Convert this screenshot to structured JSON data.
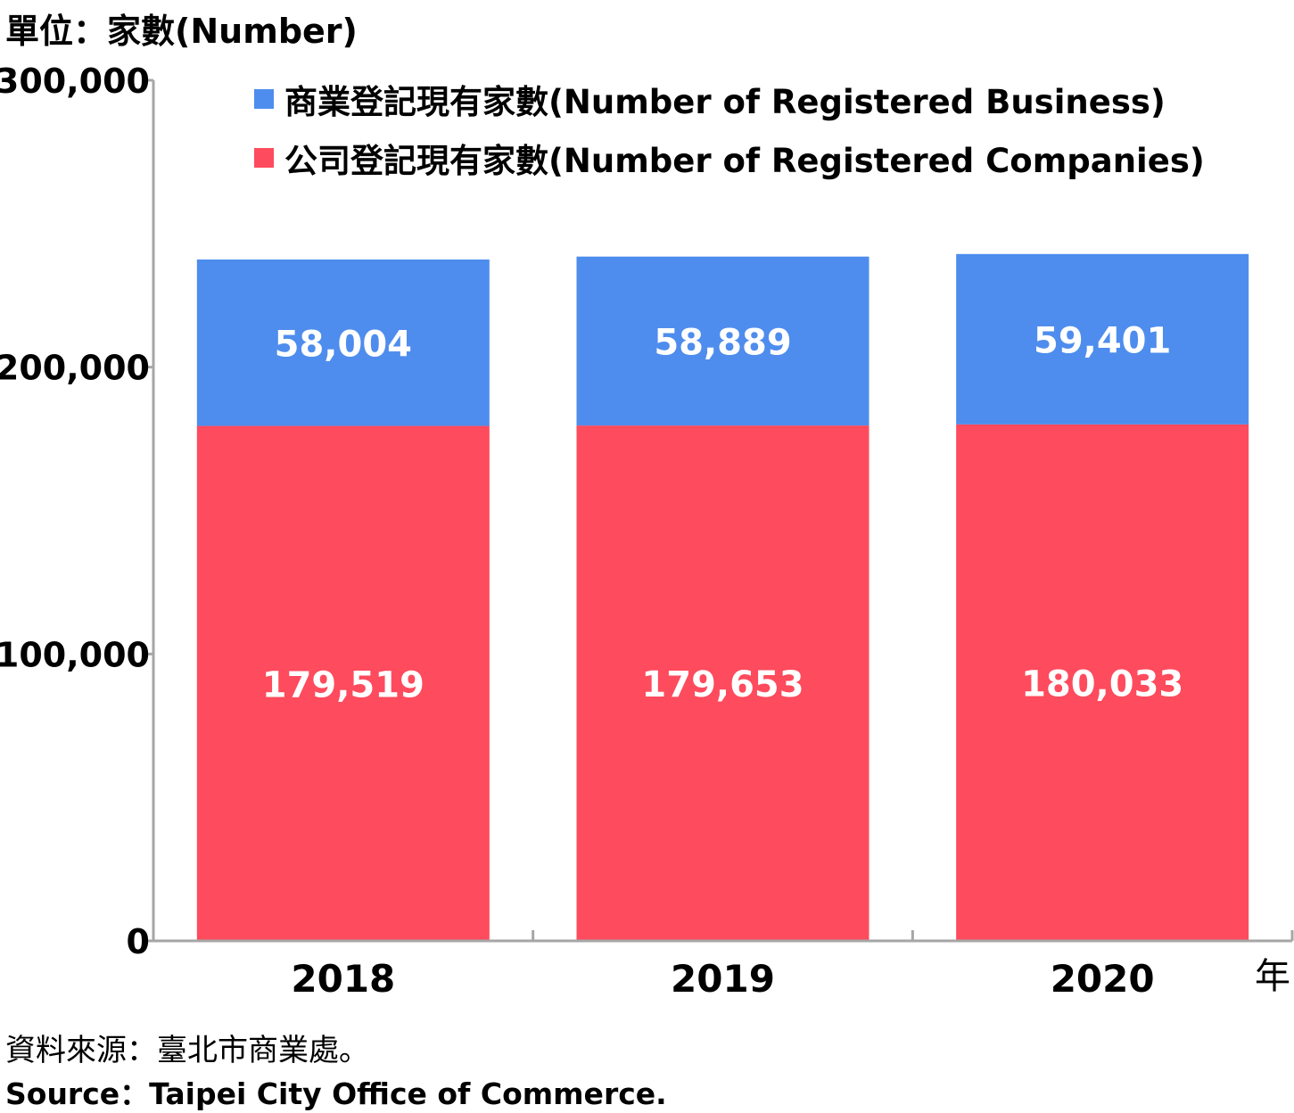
{
  "unit_label": "單位：家數(Number)",
  "source": {
    "zh": "資料來源：臺北市商業處。",
    "en": "Source：Taipei City Office of Commerce."
  },
  "colors": {
    "business": "#4e8ded",
    "companies": "#fe4b5d",
    "axis": "#a6a6a6"
  },
  "chart_data": {
    "type": "bar",
    "stacked": true,
    "categories": [
      "2018",
      "2019",
      "2020"
    ],
    "x_unit_label": "年",
    "ylim": [
      0,
      300000
    ],
    "y_ticks": [
      0,
      100000,
      200000,
      300000
    ],
    "y_tick_labels": [
      "0",
      "100,000",
      "200,000",
      "300,000"
    ],
    "grid": false,
    "legend_position": "top",
    "series": [
      {
        "key": "companies",
        "name": "公司登記現有家數(Number of Registered Companies)",
        "values": [
          179519,
          179653,
          180033
        ],
        "labels": [
          "179,519",
          "179,653",
          "180,033"
        ]
      },
      {
        "key": "business",
        "name": "商業登記現有家數(Number of Registered Business)",
        "values": [
          58004,
          58889,
          59401
        ],
        "labels": [
          "58,004",
          "58,889",
          "59,401"
        ]
      }
    ]
  }
}
